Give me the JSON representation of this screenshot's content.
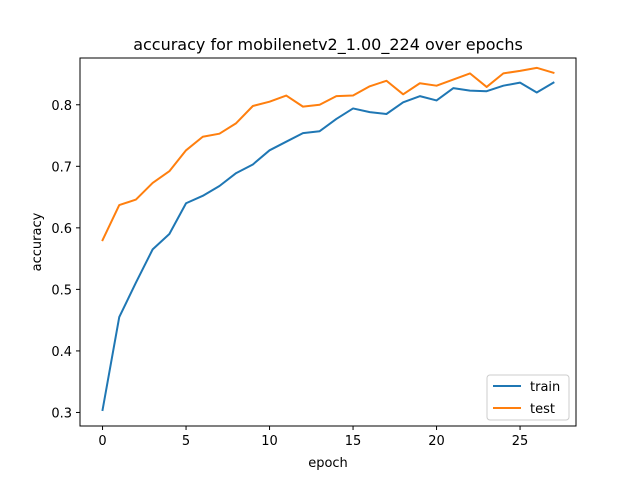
{
  "chart_data": {
    "type": "line",
    "title": "accuracy for mobilenetv2_1.00_224 over epochs",
    "xlabel": "epoch",
    "ylabel": "accuracy",
    "xlim": [
      -1.35,
      28.35
    ],
    "ylim": [
      0.278,
      0.876
    ],
    "xticks": [
      0,
      5,
      10,
      15,
      20,
      25
    ],
    "yticks": [
      0.3,
      0.4,
      0.5,
      0.6,
      0.7,
      0.8
    ],
    "ytick_labels": [
      "0.3",
      "0.4",
      "0.5",
      "0.6",
      "0.7",
      "0.8"
    ],
    "grid": false,
    "legend_position": "lower right",
    "x": [
      0,
      1,
      2,
      3,
      4,
      5,
      6,
      7,
      8,
      9,
      10,
      11,
      12,
      13,
      14,
      15,
      16,
      17,
      18,
      19,
      20,
      21,
      22,
      23,
      24,
      25,
      26,
      27
    ],
    "series": [
      {
        "name": "train",
        "color": "#1f77b4",
        "values": [
          0.304,
          0.455,
          0.511,
          0.565,
          0.59,
          0.64,
          0.652,
          0.668,
          0.689,
          0.703,
          0.726,
          0.74,
          0.754,
          0.757,
          0.777,
          0.794,
          0.788,
          0.785,
          0.804,
          0.814,
          0.807,
          0.827,
          0.823,
          0.822,
          0.831,
          0.836,
          0.82,
          0.836
        ]
      },
      {
        "name": "test",
        "color": "#ff7f0e",
        "values": [
          0.58,
          0.637,
          0.646,
          0.673,
          0.692,
          0.726,
          0.748,
          0.753,
          0.77,
          0.798,
          0.805,
          0.815,
          0.797,
          0.8,
          0.814,
          0.815,
          0.83,
          0.839,
          0.817,
          0.835,
          0.831,
          0.841,
          0.851,
          0.829,
          0.851,
          0.855,
          0.86,
          0.852
        ]
      }
    ]
  }
}
